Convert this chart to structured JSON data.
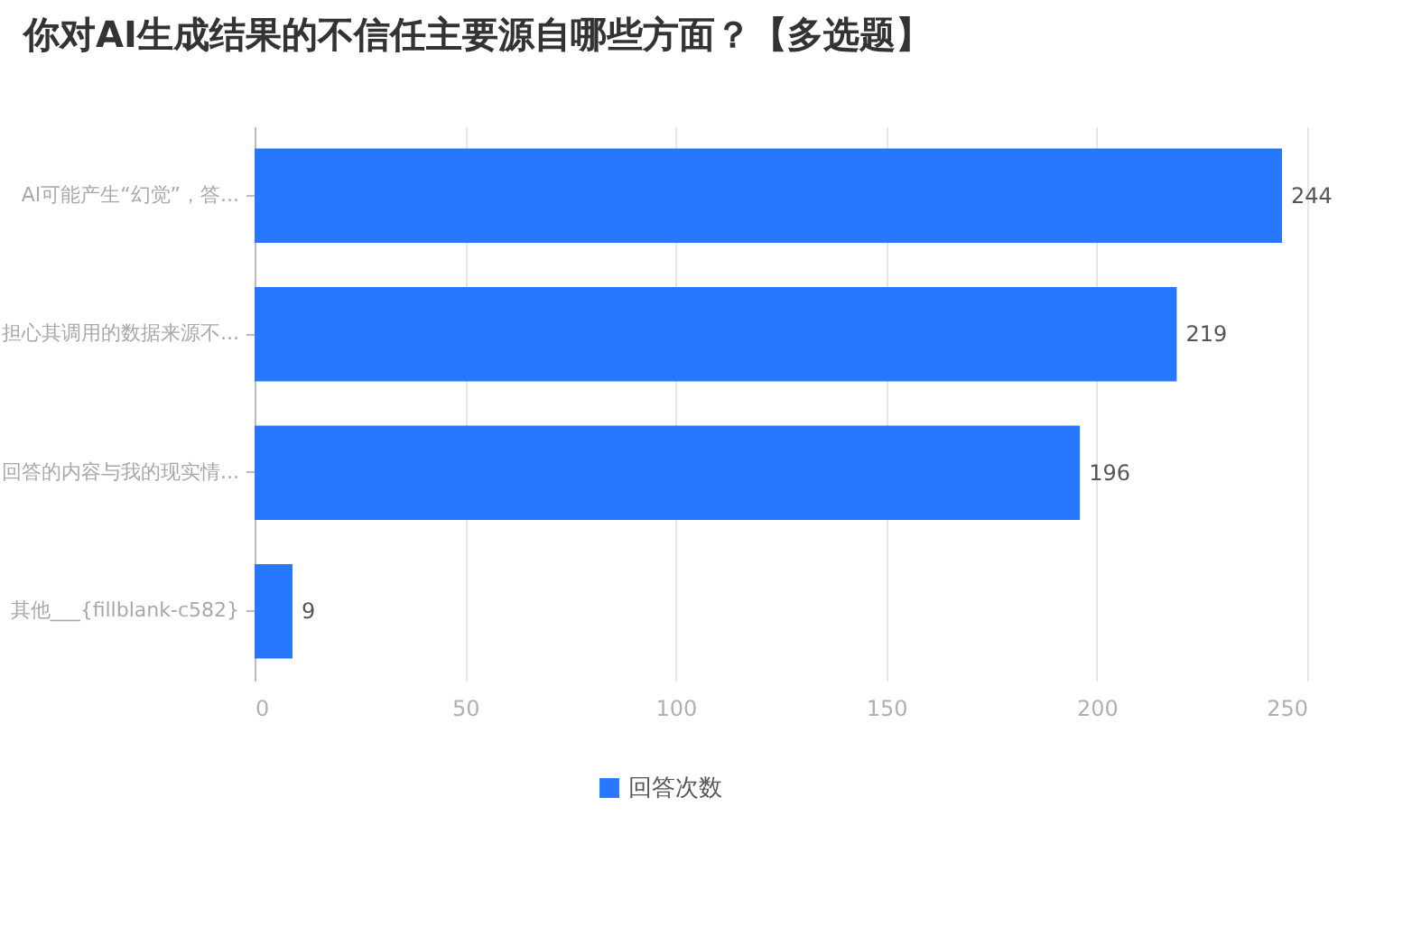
{
  "chart_data": {
    "type": "bar",
    "orientation": "horizontal",
    "title": "你对AI生成结果的不信任主要源自哪些方面？【多选题】",
    "categories": [
      "AI可能产生“幻觉”，答...",
      "担心其调用的数据来源不...",
      "回答的内容与我的现实情...",
      "其他___{fillblank-c582}"
    ],
    "series": [
      {
        "name": "回答次数",
        "color": "#2878ff",
        "values": [
          244,
          219,
          196,
          9
        ]
      }
    ],
    "xlim": [
      0,
      250
    ],
    "xticks": [
      0,
      50,
      100,
      150,
      200,
      250
    ],
    "grid": "x",
    "legend": "bottom",
    "data_labels": true
  }
}
